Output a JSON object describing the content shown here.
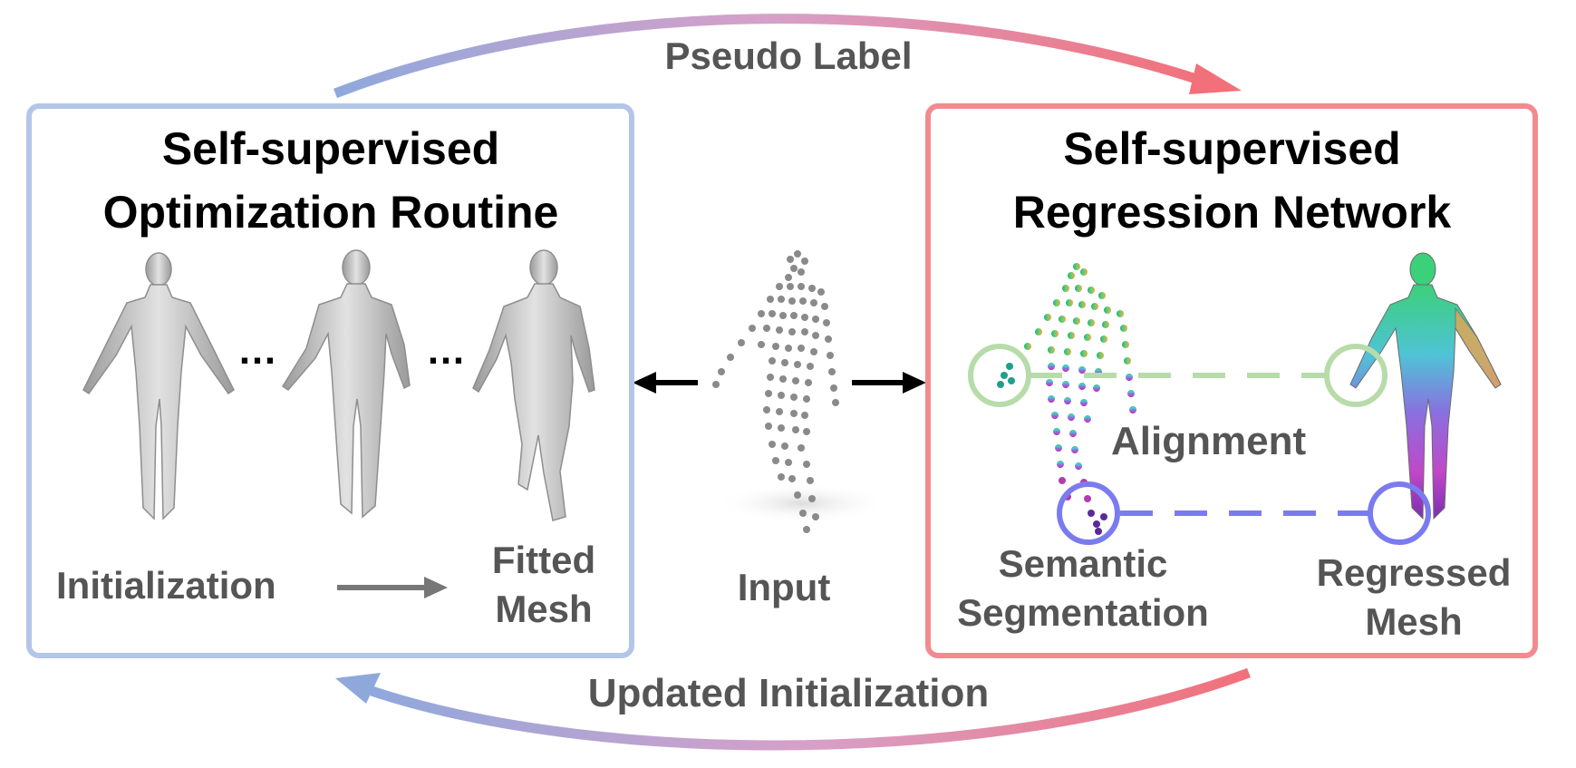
{
  "diagram": {
    "top_arrow_label": "Pseudo Label",
    "bottom_arrow_label": "Updated Initialization",
    "left_panel": {
      "title_line1": "Self-supervised",
      "title_line2": "Optimization Routine",
      "ellipsis_1": "…",
      "ellipsis_2": "…",
      "initialization_label": "Initialization",
      "fitted_mesh_line1": "Fitted",
      "fitted_mesh_line2": "Mesh"
    },
    "center": {
      "input_label": "Input"
    },
    "right_panel": {
      "title_line1": "Self-supervised",
      "title_line2": "Regression Network",
      "alignment_label": "Alignment",
      "semantic_line1": "Semantic",
      "semantic_line2": "Segmentation",
      "regressed_line1": "Regressed",
      "regressed_line2": "Mesh"
    },
    "colors": {
      "blue_border": "#b3c6e7",
      "red_border": "#f28b8f",
      "label_gray": "#555555",
      "green_circle": "#b7dcaa",
      "blue_circle": "#7b7bf0",
      "mesh_gray": "#b9b9b9"
    }
  }
}
